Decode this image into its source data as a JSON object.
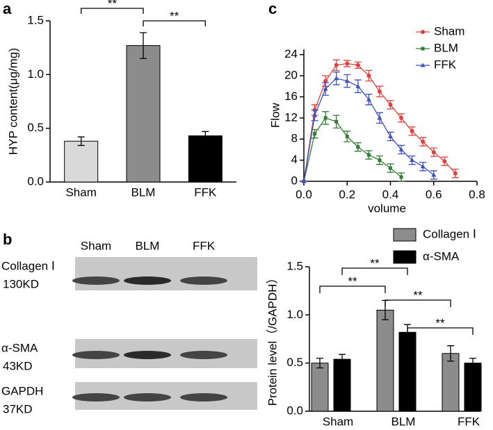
{
  "panels": [
    "a",
    "b",
    "c"
  ],
  "blot": {
    "columns": [
      "Sham",
      "BLM",
      "FFK"
    ],
    "rows": [
      {
        "label": "Collagen Ⅰ",
        "size": "130KD"
      },
      {
        "label": "α-SMA",
        "size": "43KD"
      },
      {
        "label": "GAPDH",
        "size": "37KD"
      }
    ]
  },
  "chart_data": [
    {
      "type": "bar",
      "ylabel": "HYP content(μg/mg)",
      "categories": [
        "Sham",
        "BLM",
        "FFK"
      ],
      "values": [
        0.38,
        1.27,
        0.43
      ],
      "errors": [
        0.04,
        0.12,
        0.04
      ],
      "colors": [
        "#d9d9d9",
        "#8c8c8c",
        "#000000"
      ],
      "ylim": [
        0,
        1.5
      ],
      "yticks": [
        {
          "value": 0,
          "label": "0.0"
        },
        {
          "value": 0.5,
          "label": "0.5"
        },
        {
          "value": 1,
          "label": "1.0"
        },
        {
          "value": 1.5,
          "label": "1.5"
        }
      ],
      "annotations": [
        {
          "text": "**",
          "pair": [
            "Sham",
            "BLM"
          ]
        },
        {
          "text": "**",
          "pair": [
            "BLM",
            "FFK"
          ]
        }
      ]
    },
    {
      "type": "line",
      "xlabel": "volume",
      "ylabel": "Flow",
      "legend": "top-right",
      "series": [
        {
          "name": "Sham",
          "color": "#e0403a",
          "marker": "circle",
          "x": [
            0,
            0.05,
            0.1,
            0.15,
            0.2,
            0.25,
            0.3,
            0.35,
            0.4,
            0.45,
            0.5,
            0.55,
            0.6,
            0.65,
            0.7
          ],
          "values": [
            0,
            13.5,
            19,
            22,
            22.3,
            22,
            20,
            17,
            14.5,
            12,
            9.5,
            7.5,
            5.5,
            3.8,
            1.5
          ],
          "errors": [
            0,
            1,
            1,
            1,
            0.6,
            0.6,
            1,
            1,
            0.8,
            0.8,
            0.8,
            0.8,
            0.8,
            0.8,
            0.8
          ]
        },
        {
          "name": "BLM",
          "color": "#2e7d32",
          "marker": "square",
          "x": [
            0,
            0.05,
            0.1,
            0.15,
            0.2,
            0.25,
            0.3,
            0.35,
            0.4,
            0.45
          ],
          "values": [
            0,
            9,
            12,
            11.3,
            8.5,
            6.5,
            5,
            4,
            2.5,
            0.8
          ],
          "errors": [
            0,
            0.8,
            1.2,
            1.2,
            1,
            0.8,
            0.8,
            0.8,
            0.8,
            0.8
          ]
        },
        {
          "name": "FFK",
          "color": "#3a4fc0",
          "marker": "triangle",
          "x": [
            0,
            0.05,
            0.1,
            0.15,
            0.2,
            0.25,
            0.3,
            0.35,
            0.4,
            0.45,
            0.5,
            0.55,
            0.6
          ],
          "values": [
            0,
            12.5,
            17.5,
            19.5,
            19,
            18,
            15.5,
            12,
            8.5,
            6,
            4,
            2.8,
            1.2
          ],
          "errors": [
            0,
            1,
            1.2,
            1.2,
            1.2,
            1.2,
            1,
            1,
            0.8,
            0.8,
            0.8,
            0.8,
            0.8
          ]
        }
      ],
      "xlim": [
        0,
        0.8
      ],
      "xticks": [
        {
          "value": 0,
          "label": "0.0"
        },
        {
          "value": 0.2,
          "label": "0.2"
        },
        {
          "value": 0.4,
          "label": "0.4"
        },
        {
          "value": 0.6,
          "label": "0.6"
        },
        {
          "value": 0.8,
          "label": "0.8"
        }
      ],
      "ylim": [
        0,
        25
      ],
      "yticks": [
        0,
        4,
        8,
        12,
        16,
        20,
        24
      ]
    },
    {
      "type": "grouped-bar",
      "ylabel": "Protein level（/GAPDH）",
      "legend": "top",
      "categories": [
        "Sham",
        "BLM",
        "FFK"
      ],
      "series": [
        {
          "name": "Collagen Ⅰ",
          "color": "#8c8c8c",
          "values": [
            0.5,
            1.05,
            0.6
          ],
          "errors": [
            0.05,
            0.1,
            0.08
          ]
        },
        {
          "name": "α-SMA",
          "color": "#000000",
          "values": [
            0.54,
            0.82,
            0.5
          ],
          "errors": [
            0.05,
            0.08,
            0.05
          ]
        }
      ],
      "ylim": [
        0,
        1.5
      ],
      "yticks": [
        {
          "value": 0,
          "label": "0.0"
        },
        {
          "value": 0.5,
          "label": "0.5"
        },
        {
          "value": 1,
          "label": "1.0"
        },
        {
          "value": 1.5,
          "label": "1.5"
        }
      ],
      "annotations": [
        {
          "text": "**",
          "series": "Collagen Ⅰ",
          "pair": [
            "Sham",
            "BLM"
          ]
        },
        {
          "text": "**",
          "series": "α-SMA",
          "pair": [
            "Sham",
            "BLM"
          ]
        },
        {
          "text": "**",
          "series": "Collagen Ⅰ",
          "pair": [
            "BLM",
            "FFK"
          ]
        },
        {
          "text": "**",
          "series": "α-SMA",
          "pair": [
            "BLM",
            "FFK"
          ]
        }
      ]
    }
  ]
}
